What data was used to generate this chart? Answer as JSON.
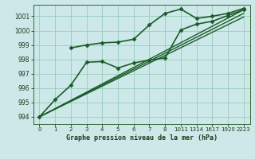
{
  "bg_color": "#cce8e8",
  "grid_color": "#99ccbb",
  "line_color": "#1a5c28",
  "outer_bg": "#b8dcd8",
  "title": "Graphe pression niveau de la mer (hPa)",
  "ylim": [
    993.5,
    1001.8
  ],
  "yticks": [
    994,
    995,
    996,
    997,
    998,
    999,
    1000,
    1001
  ],
  "xtick_labels": [
    "0",
    "1",
    "2",
    "3",
    "4",
    "5",
    "6",
    "7",
    "8",
    "1011",
    "1314",
    "1617",
    "1920",
    "2223"
  ],
  "series": [
    {
      "x": [
        0,
        1,
        2,
        3,
        4,
        5,
        6,
        7,
        8,
        9,
        10,
        11,
        12,
        13
      ],
      "y": [
        994.0,
        995.2,
        996.2,
        997.8,
        997.85,
        997.4,
        997.75,
        997.95,
        998.1,
        1000.05,
        1000.45,
        1000.65,
        1001.05,
        1001.45
      ],
      "marker": "D",
      "ms": 2.5,
      "lw": 1.2
    },
    {
      "x": [
        2,
        3,
        4,
        5,
        6,
        7,
        8,
        9,
        10,
        11,
        12,
        13
      ],
      "y": [
        998.8,
        999.0,
        999.15,
        999.2,
        999.4,
        1000.4,
        1001.2,
        1001.5,
        1000.85,
        1001.0,
        1001.2,
        1001.55
      ],
      "marker": "D",
      "ms": 2.5,
      "lw": 1.2
    },
    {
      "x": [
        0,
        13
      ],
      "y": [
        994.0,
        1001.45
      ],
      "marker": null,
      "ms": 0,
      "lw": 1.0
    },
    {
      "x": [
        0,
        13
      ],
      "y": [
        994.0,
        1001.2
      ],
      "marker": null,
      "ms": 0,
      "lw": 1.0
    },
    {
      "x": [
        0,
        13
      ],
      "y": [
        994.0,
        1000.95
      ],
      "marker": null,
      "ms": 0,
      "lw": 1.0
    }
  ]
}
